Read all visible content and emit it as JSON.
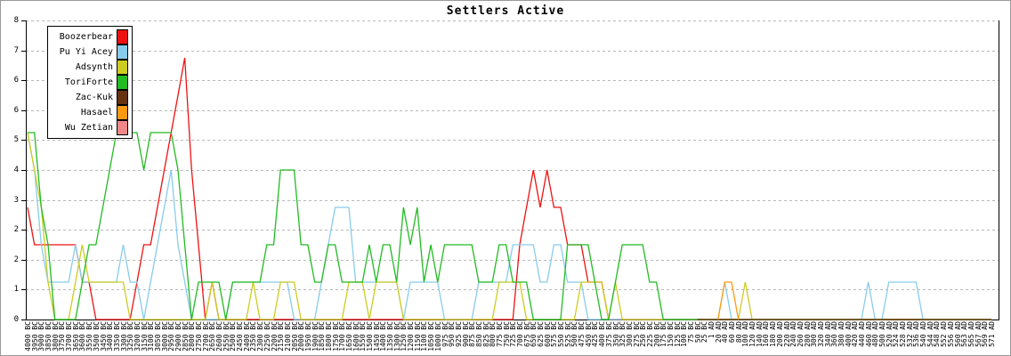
{
  "title": "Settlers Active",
  "legend_items": [
    {
      "label": "Boozerbear",
      "color": "#ee1111"
    },
    {
      "label": "Pu Yi Acey",
      "color": "#88cceb"
    },
    {
      "label": "Adsynth",
      "color": "#cccc22"
    },
    {
      "label": "ToriForte",
      "color": "#22bb22"
    },
    {
      "label": "Zac-Kuk",
      "color": "#663311"
    },
    {
      "label": "Hasael",
      "color": "#ff9911"
    },
    {
      "label": "Wu Zetian",
      "color": "#ee8888"
    }
  ],
  "chart_data": {
    "type": "line",
    "title": "Settlers Active",
    "xlabel": "",
    "ylabel": "",
    "ylim": [
      0,
      8
    ],
    "grid": "dashed-horizontal",
    "legend_position": "top-left",
    "y_ticks": [
      {
        "v": 0,
        "label": "0"
      },
      {
        "v": 0.8,
        "label": "1"
      },
      {
        "v": 1.6,
        "label": "2"
      },
      {
        "v": 2.4,
        "label": "2"
      },
      {
        "v": 3.2,
        "label": "3"
      },
      {
        "v": 4.0,
        "label": "4"
      },
      {
        "v": 4.8,
        "label": "5"
      },
      {
        "v": 5.6,
        "label": "6"
      },
      {
        "v": 6.4,
        "label": "6"
      },
      {
        "v": 7.2,
        "label": "7"
      },
      {
        "v": 8.0,
        "label": "8"
      }
    ],
    "x_labels": [
      "4000 BC",
      "3950 BC",
      "3900 BC",
      "3850 BC",
      "3800 BC",
      "3750 BC",
      "3700 BC",
      "3650 BC",
      "3600 BC",
      "3550 BC",
      "3500 BC",
      "3450 BC",
      "3400 BC",
      "3350 BC",
      "3300 BC",
      "3250 BC",
      "3200 BC",
      "3150 BC",
      "3100 BC",
      "3050 BC",
      "3000 BC",
      "2950 BC",
      "2900 BC",
      "2850 BC",
      "2800 BC",
      "2750 BC",
      "2700 BC",
      "2650 BC",
      "2600 BC",
      "2550 BC",
      "2500 BC",
      "2450 BC",
      "2400 BC",
      "2350 BC",
      "2300 BC",
      "2250 BC",
      "2200 BC",
      "2150 BC",
      "2100 BC",
      "2050 BC",
      "2000 BC",
      "1950 BC",
      "1900 BC",
      "1850 BC",
      "1800 BC",
      "1750 BC",
      "1700 BC",
      "1650 BC",
      "1600 BC",
      "1550 BC",
      "1500 BC",
      "1450 BC",
      "1400 BC",
      "1350 BC",
      "1300 BC",
      "1250 BC",
      "1200 BC",
      "1150 BC",
      "1100 BC",
      "1050 BC",
      "1000 BC",
      "975 BC",
      "950 BC",
      "925 BC",
      "900 BC",
      "875 BC",
      "850 BC",
      "825 BC",
      "800 BC",
      "775 BC",
      "750 BC",
      "725 BC",
      "700 BC",
      "675 BC",
      "650 BC",
      "625 BC",
      "600 BC",
      "575 BC",
      "550 BC",
      "525 BC",
      "500 BC",
      "475 BC",
      "450 BC",
      "425 BC",
      "400 BC",
      "375 BC",
      "350 BC",
      "325 BC",
      "300 BC",
      "275 BC",
      "250 BC",
      "225 BC",
      "200 BC",
      "175 BC",
      "150 BC",
      "125 BC",
      "100 BC",
      "75 BC",
      "50 BC",
      "25 BC",
      "1 AD",
      "20 AD",
      "40 AD",
      "60 AD",
      "80 AD",
      "100 AD",
      "120 AD",
      "140 AD",
      "160 AD",
      "180 AD",
      "200 AD",
      "220 AD",
      "240 AD",
      "260 AD",
      "280 AD",
      "300 AD",
      "320 AD",
      "340 AD",
      "360 AD",
      "380 AD",
      "400 AD",
      "420 AD",
      "440 AD",
      "460 AD",
      "480 AD",
      "500 AD",
      "520 AD",
      "524 AD",
      "528 AD",
      "532 AD",
      "536 AD",
      "540 AD",
      "544 AD",
      "548 AD",
      "552 AD",
      "556 AD",
      "560 AD",
      "563 AD",
      "565 AD",
      "567 AD",
      "569 AD",
      "571 AD"
    ],
    "series": [
      {
        "name": "Boozerbear",
        "color": "#ee1111",
        "start": 0,
        "values": [
          3,
          2,
          2,
          2,
          2,
          2,
          2,
          2,
          1,
          1,
          0,
          0,
          0,
          0,
          0,
          0,
          1,
          2,
          2,
          3,
          4,
          5,
          6,
          7,
          4,
          2,
          0,
          1,
          0,
          0,
          0,
          0,
          0,
          0,
          0,
          0,
          0,
          0,
          0,
          0,
          0,
          0,
          0,
          0,
          0,
          0,
          0,
          0,
          0,
          0,
          0,
          0,
          0,
          0,
          0,
          0,
          0,
          0,
          0,
          0,
          0,
          0,
          0,
          0,
          0,
          0,
          0,
          0,
          0,
          0,
          0,
          0,
          2,
          3,
          4,
          3,
          4,
          3,
          3,
          2,
          2,
          2,
          1,
          1,
          1,
          0,
          0,
          0,
          0,
          0,
          0,
          0,
          0,
          0,
          0,
          0,
          0,
          0,
          0,
          0,
          0,
          0,
          0,
          0,
          0,
          0,
          0,
          0,
          0,
          0,
          0,
          0,
          0,
          0,
          0,
          0,
          0,
          0,
          0,
          0,
          0,
          0,
          0,
          0,
          0,
          0,
          0,
          0,
          0,
          0,
          0,
          0,
          0,
          0,
          0,
          0,
          0,
          0,
          0,
          0,
          0,
          0
        ]
      },
      {
        "name": "Pu Yi Acey",
        "color": "#88cceb",
        "start": 0,
        "values": [
          5,
          4,
          2,
          1,
          1,
          1,
          1,
          2,
          1,
          1,
          1,
          1,
          1,
          1,
          2,
          1,
          1,
          0,
          1,
          2,
          3,
          4,
          2,
          1,
          0,
          0,
          0,
          0,
          0,
          0,
          1,
          1,
          1,
          1,
          1,
          1,
          1,
          1,
          1,
          0,
          0,
          0,
          0,
          1,
          2,
          3,
          3,
          3,
          1,
          1,
          1,
          1,
          1,
          1,
          1,
          0,
          1,
          1,
          1,
          1,
          1,
          0,
          0,
          0,
          0,
          0,
          1,
          1,
          1,
          1,
          1,
          2,
          2,
          2,
          2,
          1,
          1,
          2,
          2,
          1,
          1,
          1,
          0,
          0,
          0,
          0,
          0,
          0,
          0,
          0,
          0,
          0,
          0,
          0,
          0,
          0,
          0,
          0,
          0,
          0,
          0,
          0,
          1,
          0,
          0,
          0,
          0,
          0,
          0,
          0,
          0,
          0,
          0,
          0,
          0,
          0,
          0,
          0,
          0,
          0,
          0,
          0,
          0,
          1,
          0,
          0,
          1,
          1,
          1,
          1,
          1,
          0,
          0,
          0,
          0,
          0,
          0,
          0,
          0,
          0,
          0,
          0
        ]
      },
      {
        "name": "Adsynth",
        "color": "#cccc22",
        "start": 0,
        "values": [
          5,
          4,
          3,
          1,
          0,
          0,
          0,
          1,
          2,
          1,
          1,
          1,
          1,
          1,
          1,
          0,
          0,
          0,
          0,
          0,
          0,
          0,
          0,
          0,
          0,
          0,
          0,
          1,
          0,
          0,
          0,
          0,
          0,
          1,
          0,
          0,
          0,
          1,
          1,
          1,
          0,
          0,
          0,
          0,
          0,
          0,
          0,
          1,
          1,
          1,
          0,
          1,
          1,
          1,
          1,
          0,
          0,
          0,
          0,
          0,
          0,
          0,
          0,
          0,
          0,
          0,
          0,
          0,
          0,
          1,
          1,
          1,
          1,
          0,
          0,
          0,
          0,
          0,
          0,
          0,
          0,
          1,
          1,
          1,
          1,
          0,
          1,
          0,
          0,
          0,
          0,
          0,
          0,
          0,
          0,
          0,
          0,
          0,
          0,
          0,
          0,
          0,
          0,
          0,
          0,
          1,
          0,
          0,
          0,
          0,
          0,
          0,
          0,
          0,
          0,
          0,
          0,
          0,
          0,
          0,
          0,
          0,
          0,
          0,
          0,
          0,
          0,
          0,
          0,
          0,
          0,
          0,
          0,
          0,
          0,
          0,
          0,
          0,
          0,
          0,
          0,
          0
        ]
      },
      {
        "name": "ToriForte",
        "color": "#22bb22",
        "start": 0,
        "values": [
          5,
          5,
          3,
          2,
          0,
          0,
          0,
          0,
          1,
          2,
          2,
          3,
          4,
          5,
          5,
          5,
          5,
          4,
          5,
          5,
          5,
          5,
          4,
          2,
          0,
          1,
          1,
          1,
          1,
          0,
          1,
          1,
          1,
          1,
          1,
          2,
          2,
          4,
          4,
          4,
          2,
          2,
          1,
          1,
          2,
          2,
          1,
          1,
          1,
          1,
          2,
          1,
          2,
          2,
          1,
          3,
          2,
          3,
          1,
          2,
          1,
          2,
          2,
          2,
          2,
          2,
          1,
          1,
          1,
          2,
          2,
          1,
          1,
          1,
          0,
          0,
          0,
          0,
          0,
          2,
          2,
          2,
          2,
          1,
          0,
          0,
          1,
          2,
          2,
          2,
          2,
          1,
          1,
          0,
          0,
          0,
          0,
          0,
          0,
          0,
          0,
          0,
          0,
          0,
          0,
          0,
          0,
          0,
          0,
          0,
          0,
          0,
          0,
          0,
          0,
          0,
          0,
          0,
          0,
          0,
          0,
          0,
          0,
          0,
          0,
          0,
          0,
          0,
          0,
          0,
          0,
          0,
          0,
          0,
          0,
          0,
          0,
          0,
          0,
          0,
          0,
          0
        ]
      },
      {
        "name": "Zac-Kuk",
        "color": "#663311",
        "start": 98,
        "values": [
          0,
          0,
          0,
          0,
          0,
          0,
          0,
          0,
          0,
          0,
          0,
          0,
          0,
          0,
          0,
          0,
          0,
          0,
          0,
          0,
          0,
          0,
          0,
          0,
          0,
          0,
          0,
          0,
          0,
          0,
          0,
          0,
          0,
          0,
          0,
          0,
          0,
          0,
          0,
          0,
          0,
          0,
          0,
          0
        ]
      },
      {
        "name": "Hasael",
        "color": "#ff9911",
        "start": 101,
        "values": [
          0,
          1,
          1,
          0
        ]
      },
      {
        "name": "Wu Zetian",
        "color": "#ee8888",
        "start": 0,
        "values": []
      }
    ]
  }
}
